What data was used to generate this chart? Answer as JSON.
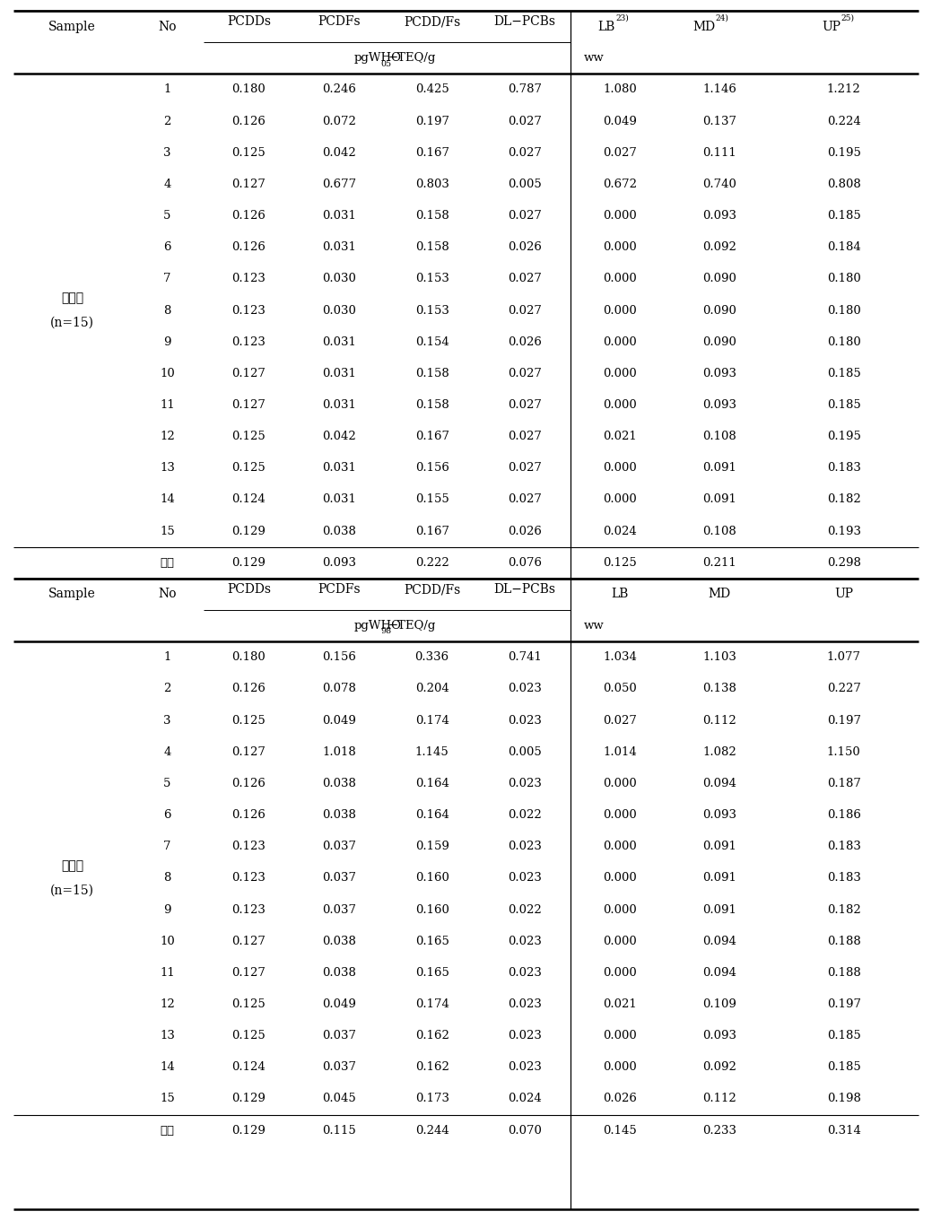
{
  "section1": {
    "sample_label_line1": "천일염",
    "sample_label_line2": "(n=15)",
    "col_headers": [
      "PCDDs",
      "PCDFs",
      "PCDD/Fs",
      "DL−PCBs",
      "LB",
      "MD",
      "UP"
    ],
    "lb_super": "23)",
    "md_super": "24)",
    "up_super": "25)",
    "unit_text": "pgWHO",
    "unit_sub": "05",
    "unit_rest": "−TEQ/g",
    "unit_ww": "ww",
    "rows": [
      [
        "1",
        "0.180",
        "0.246",
        "0.425",
        "0.787",
        "1.080",
        "1.146",
        "1.212"
      ],
      [
        "2",
        "0.126",
        "0.072",
        "0.197",
        "0.027",
        "0.049",
        "0.137",
        "0.224"
      ],
      [
        "3",
        "0.125",
        "0.042",
        "0.167",
        "0.027",
        "0.027",
        "0.111",
        "0.195"
      ],
      [
        "4",
        "0.127",
        "0.677",
        "0.803",
        "0.005",
        "0.672",
        "0.740",
        "0.808"
      ],
      [
        "5",
        "0.126",
        "0.031",
        "0.158",
        "0.027",
        "0.000",
        "0.093",
        "0.185"
      ],
      [
        "6",
        "0.126",
        "0.031",
        "0.158",
        "0.026",
        "0.000",
        "0.092",
        "0.184"
      ],
      [
        "7",
        "0.123",
        "0.030",
        "0.153",
        "0.027",
        "0.000",
        "0.090",
        "0.180"
      ],
      [
        "8",
        "0.123",
        "0.030",
        "0.153",
        "0.027",
        "0.000",
        "0.090",
        "0.180"
      ],
      [
        "9",
        "0.123",
        "0.031",
        "0.154",
        "0.026",
        "0.000",
        "0.090",
        "0.180"
      ],
      [
        "10",
        "0.127",
        "0.031",
        "0.158",
        "0.027",
        "0.000",
        "0.093",
        "0.185"
      ],
      [
        "11",
        "0.127",
        "0.031",
        "0.158",
        "0.027",
        "0.000",
        "0.093",
        "0.185"
      ],
      [
        "12",
        "0.125",
        "0.042",
        "0.167",
        "0.027",
        "0.021",
        "0.108",
        "0.195"
      ],
      [
        "13",
        "0.125",
        "0.031",
        "0.156",
        "0.027",
        "0.000",
        "0.091",
        "0.183"
      ],
      [
        "14",
        "0.124",
        "0.031",
        "0.155",
        "0.027",
        "0.000",
        "0.091",
        "0.182"
      ],
      [
        "15",
        "0.129",
        "0.038",
        "0.167",
        "0.026",
        "0.024",
        "0.108",
        "0.193"
      ]
    ],
    "avg_label": "평균",
    "avg_row": [
      "0.129",
      "0.093",
      "0.222",
      "0.076",
      "0.125",
      "0.211",
      "0.298"
    ]
  },
  "section2": {
    "sample_label_line1": "천일염",
    "sample_label_line2": "(n=15)",
    "col_headers": [
      "PCDDs",
      "PCDFs",
      "PCDD/Fs",
      "DL−PCBs",
      "LB",
      "MD",
      "UP"
    ],
    "unit_text": "pgWHO",
    "unit_sub": "98",
    "unit_rest": "−TEQ/g",
    "unit_ww": "ww",
    "rows": [
      [
        "1",
        "0.180",
        "0.156",
        "0.336",
        "0.741",
        "1.034",
        "1.103",
        "1.077"
      ],
      [
        "2",
        "0.126",
        "0.078",
        "0.204",
        "0.023",
        "0.050",
        "0.138",
        "0.227"
      ],
      [
        "3",
        "0.125",
        "0.049",
        "0.174",
        "0.023",
        "0.027",
        "0.112",
        "0.197"
      ],
      [
        "4",
        "0.127",
        "1.018",
        "1.145",
        "0.005",
        "1.014",
        "1.082",
        "1.150"
      ],
      [
        "5",
        "0.126",
        "0.038",
        "0.164",
        "0.023",
        "0.000",
        "0.094",
        "0.187"
      ],
      [
        "6",
        "0.126",
        "0.038",
        "0.164",
        "0.022",
        "0.000",
        "0.093",
        "0.186"
      ],
      [
        "7",
        "0.123",
        "0.037",
        "0.159",
        "0.023",
        "0.000",
        "0.091",
        "0.183"
      ],
      [
        "8",
        "0.123",
        "0.037",
        "0.160",
        "0.023",
        "0.000",
        "0.091",
        "0.183"
      ],
      [
        "9",
        "0.123",
        "0.037",
        "0.160",
        "0.022",
        "0.000",
        "0.091",
        "0.182"
      ],
      [
        "10",
        "0.127",
        "0.038",
        "0.165",
        "0.023",
        "0.000",
        "0.094",
        "0.188"
      ],
      [
        "11",
        "0.127",
        "0.038",
        "0.165",
        "0.023",
        "0.000",
        "0.094",
        "0.188"
      ],
      [
        "12",
        "0.125",
        "0.049",
        "0.174",
        "0.023",
        "0.021",
        "0.109",
        "0.197"
      ],
      [
        "13",
        "0.125",
        "0.037",
        "0.162",
        "0.023",
        "0.000",
        "0.093",
        "0.185"
      ],
      [
        "14",
        "0.124",
        "0.037",
        "0.162",
        "0.023",
        "0.000",
        "0.092",
        "0.185"
      ],
      [
        "15",
        "0.129",
        "0.045",
        "0.173",
        "0.024",
        "0.026",
        "0.112",
        "0.198"
      ]
    ],
    "avg_label": "평균",
    "avg_row": [
      "0.129",
      "0.115",
      "0.244",
      "0.070",
      "0.145",
      "0.233",
      "0.314"
    ]
  },
  "bg_color": "#ffffff",
  "text_color": "#000000"
}
